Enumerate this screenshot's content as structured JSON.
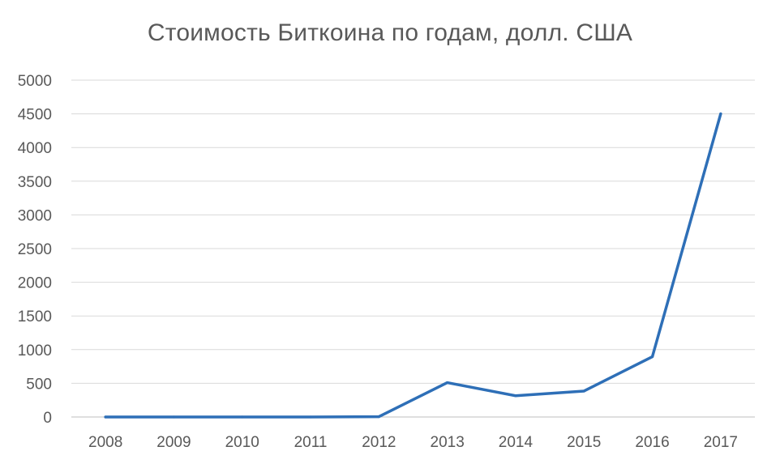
{
  "chart_data": {
    "type": "line",
    "title": "Стоимость Биткоина по годам, долл. США",
    "xlabel": "",
    "ylabel": "",
    "categories": [
      "2008",
      "2009",
      "2010",
      "2011",
      "2012",
      "2013",
      "2014",
      "2015",
      "2016",
      "2017"
    ],
    "series": [
      {
        "values": [
          0,
          0,
          0,
          0,
          5,
          510,
          315,
          385,
          895,
          4500
        ],
        "color": "#2e6fb7"
      }
    ],
    "ylim": [
      0,
      5000
    ],
    "yticks": [
      "0",
      "500",
      "1000",
      "1500",
      "2000",
      "2500",
      "3000",
      "3500",
      "4000",
      "4500",
      "5000"
    ],
    "grid": true,
    "legend": "none"
  }
}
